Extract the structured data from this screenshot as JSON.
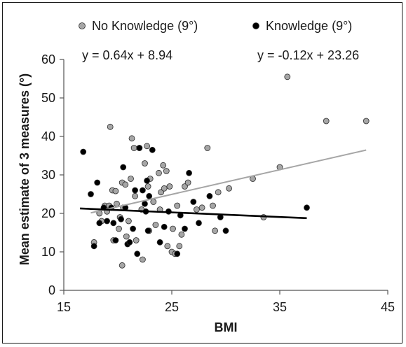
{
  "chart_data": {
    "type": "scatter",
    "xlabel": "BMI",
    "ylabel": "Mean estimate of 3 measures (°)",
    "xlim": [
      15,
      45
    ],
    "ylim": [
      0,
      60
    ],
    "xticks": [
      15,
      25,
      35,
      45
    ],
    "yticks": [
      0,
      10,
      20,
      30,
      40,
      50,
      60
    ],
    "grid": false,
    "legend_position": "top",
    "series": [
      {
        "name": "No Knowledge (9°)",
        "color": "#a6a6a6",
        "marker": "circle",
        "trendline": {
          "equation": "y = 0.64x + 8.94",
          "slope": 0.64,
          "intercept": 8.94,
          "x_range": [
            17.5,
            43
          ]
        },
        "points": [
          [
            17.8,
            12.5
          ],
          [
            18.3,
            20
          ],
          [
            18.5,
            18
          ],
          [
            18.8,
            22
          ],
          [
            19.0,
            20.5
          ],
          [
            19.2,
            22
          ],
          [
            19.3,
            42.5
          ],
          [
            19.5,
            26
          ],
          [
            19.6,
            13
          ],
          [
            19.8,
            25.8
          ],
          [
            19.9,
            22.5
          ],
          [
            20.1,
            16
          ],
          [
            20.2,
            19
          ],
          [
            20.4,
            28
          ],
          [
            20.4,
            6.5
          ],
          [
            20.5,
            21.5
          ],
          [
            20.7,
            27.5
          ],
          [
            20.8,
            14
          ],
          [
            21.0,
            18
          ],
          [
            21.2,
            29
          ],
          [
            21.3,
            39.5
          ],
          [
            21.5,
            37
          ],
          [
            21.6,
            24.5
          ],
          [
            21.7,
            13
          ],
          [
            22.0,
            37
          ],
          [
            22.2,
            21
          ],
          [
            22.3,
            8
          ],
          [
            22.5,
            33
          ],
          [
            22.7,
            37.5
          ],
          [
            22.8,
            27
          ],
          [
            22.9,
            15.5
          ],
          [
            23.0,
            29
          ],
          [
            23.3,
            23
          ],
          [
            23.5,
            17
          ],
          [
            23.8,
            30.5
          ],
          [
            23.9,
            21
          ],
          [
            24.0,
            25.5
          ],
          [
            24.2,
            32.5
          ],
          [
            24.3,
            26.5
          ],
          [
            24.5,
            31
          ],
          [
            24.6,
            11.5
          ],
          [
            24.8,
            27
          ],
          [
            25.0,
            10
          ],
          [
            25.1,
            16
          ],
          [
            25.3,
            9.5
          ],
          [
            25.5,
            22
          ],
          [
            25.7,
            11.5
          ],
          [
            25.9,
            14.5
          ],
          [
            26.2,
            27
          ],
          [
            26.5,
            28
          ],
          [
            27.3,
            21
          ],
          [
            27.8,
            21.5
          ],
          [
            28.3,
            37
          ],
          [
            28.8,
            22
          ],
          [
            29.0,
            15.5
          ],
          [
            29.3,
            25.5
          ],
          [
            30.3,
            26.5
          ],
          [
            32.5,
            29
          ],
          [
            33.5,
            19
          ],
          [
            35.0,
            32
          ],
          [
            35.7,
            55.5
          ],
          [
            39.3,
            44
          ],
          [
            43.0,
            44
          ]
        ]
      },
      {
        "name": "Knowledge (9°)",
        "color": "#000000",
        "marker": "circle",
        "trendline": {
          "equation": "y = -0.12x + 23.26",
          "slope": -0.12,
          "intercept": 23.26,
          "x_range": [
            16.5,
            37.5
          ]
        },
        "points": [
          [
            16.8,
            36
          ],
          [
            17.5,
            25
          ],
          [
            17.8,
            11.5
          ],
          [
            18.1,
            28
          ],
          [
            18.3,
            17.5
          ],
          [
            18.7,
            21.5
          ],
          [
            19.0,
            18
          ],
          [
            19.4,
            21.5
          ],
          [
            19.6,
            17.5
          ],
          [
            19.8,
            13
          ],
          [
            20.3,
            18.5
          ],
          [
            20.5,
            32
          ],
          [
            20.7,
            21.5
          ],
          [
            20.9,
            12
          ],
          [
            21.1,
            12.5
          ],
          [
            21.4,
            16
          ],
          [
            21.6,
            26
          ],
          [
            21.8,
            9.5
          ],
          [
            22.0,
            37
          ],
          [
            22.3,
            26
          ],
          [
            22.5,
            22.5
          ],
          [
            22.6,
            20.5
          ],
          [
            22.7,
            28.5
          ],
          [
            22.8,
            15.5
          ],
          [
            22.9,
            24.5
          ],
          [
            23.2,
            36.5
          ],
          [
            23.9,
            12.5
          ],
          [
            24.3,
            16.5
          ],
          [
            24.7,
            20.5
          ],
          [
            25.5,
            9.5
          ],
          [
            25.8,
            19.5
          ],
          [
            26.2,
            16
          ],
          [
            26.6,
            30.5
          ],
          [
            27.0,
            23
          ],
          [
            27.5,
            17.5
          ],
          [
            28.5,
            24.5
          ],
          [
            29.5,
            19
          ],
          [
            30.0,
            15.5
          ],
          [
            37.5,
            21.5
          ]
        ]
      }
    ],
    "legend": [
      {
        "label": "No Knowledge (9°)",
        "color": "#a6a6a6"
      },
      {
        "label": "Knowledge (9°)",
        "color": "#000000"
      }
    ],
    "annotations": [
      "y = 0.64x + 8.94",
      "y = -0.12x + 23.26"
    ]
  }
}
